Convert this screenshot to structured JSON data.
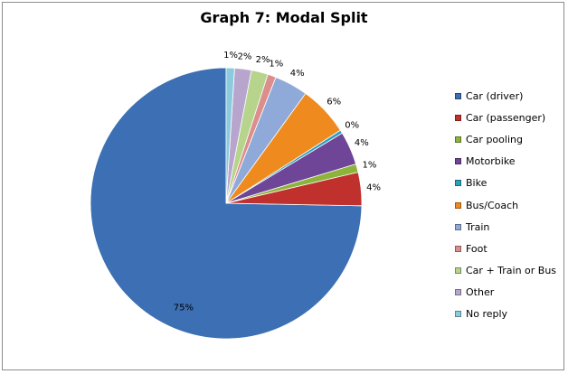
{
  "chart_data": {
    "type": "pie",
    "title": "Graph 7: Modal Split",
    "legend_position": "right",
    "categories": [
      "Car (driver)",
      "Car (passenger)",
      "Car pooling",
      "Motorbike",
      "Bike",
      "Bus/Coach",
      "Train",
      "Foot",
      "Car + Train or Bus",
      "Other",
      "No reply"
    ],
    "values": [
      75,
      4,
      1,
      4,
      0.4,
      6,
      4,
      1,
      2,
      2,
      1
    ],
    "data_labels": [
      "75%",
      "4%",
      "1%",
      "4%",
      "0%",
      "6%",
      "4%",
      "1%",
      "2%",
      "2%",
      "1%"
    ],
    "colors": [
      "#3C6FB3",
      "#C0302D",
      "#8DB43A",
      "#6E4597",
      "#2E9EBD",
      "#EE8A1E",
      "#8FAAD8",
      "#DB8E8B",
      "#B6D48C",
      "#B8A5CE",
      "#8CCBDD"
    ]
  }
}
